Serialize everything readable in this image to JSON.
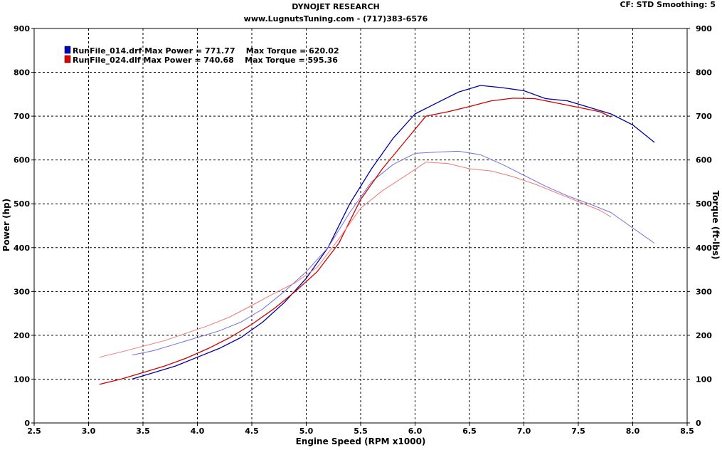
{
  "header": {
    "title": "DYNOJET RESEARCH",
    "subtitle": "www.LugnutsTuning.com - (717)383-6576",
    "settings": "CF: STD  Smoothing: 5"
  },
  "chart_data": {
    "type": "line",
    "xlabel": "Engine Speed (RPM x1000)",
    "ylabel": "Power (hp)",
    "y2label": "Torque (ft-lbs)",
    "xlim": [
      2.5,
      8.5
    ],
    "ylim": [
      0,
      900
    ],
    "y2lim": [
      0,
      900
    ],
    "grid": true,
    "legend_position": "top-left",
    "x_ticks": [
      "2.5",
      "3.0",
      "3.5",
      "4.0",
      "4.5",
      "5.0",
      "5.5",
      "6.0",
      "6.5",
      "7.0",
      "7.5",
      "8.0",
      "8.5"
    ],
    "y_ticks": [
      "0",
      "100",
      "200",
      "300",
      "400",
      "500",
      "600",
      "700",
      "800",
      "900"
    ],
    "legend": [
      {
        "text": "RunFile_014.drf Max Power = 771.77    Max Torque = 620.02",
        "color": "#0000b0"
      },
      {
        "text": "RunFile_024.dlf Max Power = 740.68    Max Torque = 595.36",
        "color": "#e00000"
      }
    ],
    "series": [
      {
        "name": "RunFile_014.drf",
        "measure": "power",
        "axis": "left",
        "color": "#0000a0",
        "x": [
          3.4,
          3.6,
          3.8,
          4.0,
          4.2,
          4.4,
          4.6,
          4.8,
          5.0,
          5.2,
          5.4,
          5.6,
          5.8,
          6.0,
          6.2,
          6.4,
          6.6,
          6.8,
          7.0,
          7.2,
          7.4,
          7.6,
          7.8,
          8.0,
          8.2
        ],
        "y": [
          100,
          115,
          130,
          150,
          170,
          195,
          230,
          275,
          330,
          400,
          500,
          580,
          650,
          705,
          730,
          755,
          770,
          765,
          758,
          740,
          735,
          720,
          705,
          680,
          640
        ]
      },
      {
        "name": "RunFile_014.drf",
        "measure": "torque",
        "axis": "right",
        "color": "#7070e0",
        "x": [
          3.4,
          3.6,
          3.8,
          4.0,
          4.2,
          4.4,
          4.6,
          4.8,
          5.0,
          5.2,
          5.4,
          5.6,
          5.8,
          6.0,
          6.2,
          6.4,
          6.6,
          6.8,
          7.0,
          7.2,
          7.4,
          7.6,
          7.8,
          8.0,
          8.2
        ],
        "y": [
          155,
          165,
          180,
          195,
          210,
          230,
          260,
          300,
          345,
          400,
          480,
          550,
          590,
          615,
          618,
          620,
          612,
          590,
          565,
          540,
          518,
          500,
          480,
          445,
          410
        ]
      },
      {
        "name": "RunFile_024.dlf",
        "measure": "power",
        "axis": "left",
        "color": "#d00000",
        "x": [
          3.1,
          3.3,
          3.5,
          3.7,
          3.9,
          4.1,
          4.3,
          4.5,
          4.7,
          4.9,
          5.1,
          5.3,
          5.5,
          5.7,
          5.9,
          6.1,
          6.3,
          6.5,
          6.7,
          6.9,
          7.1,
          7.3,
          7.5,
          7.7,
          7.8
        ],
        "y": [
          88,
          100,
          115,
          130,
          148,
          170,
          195,
          225,
          260,
          300,
          345,
          410,
          510,
          580,
          640,
          700,
          710,
          722,
          735,
          741,
          740,
          730,
          720,
          710,
          698
        ]
      },
      {
        "name": "RunFile_024.dlf",
        "measure": "torque",
        "axis": "right",
        "color": "#f07878",
        "x": [
          3.1,
          3.3,
          3.5,
          3.7,
          3.9,
          4.1,
          4.3,
          4.5,
          4.7,
          4.9,
          5.1,
          5.3,
          5.5,
          5.7,
          5.9,
          6.1,
          6.3,
          6.5,
          6.7,
          6.9,
          7.1,
          7.3,
          7.5,
          7.7,
          7.8
        ],
        "y": [
          150,
          162,
          175,
          188,
          205,
          222,
          242,
          268,
          295,
          320,
          355,
          420,
          490,
          530,
          562,
          595,
          592,
          580,
          575,
          562,
          545,
          525,
          505,
          485,
          470
        ]
      }
    ]
  }
}
